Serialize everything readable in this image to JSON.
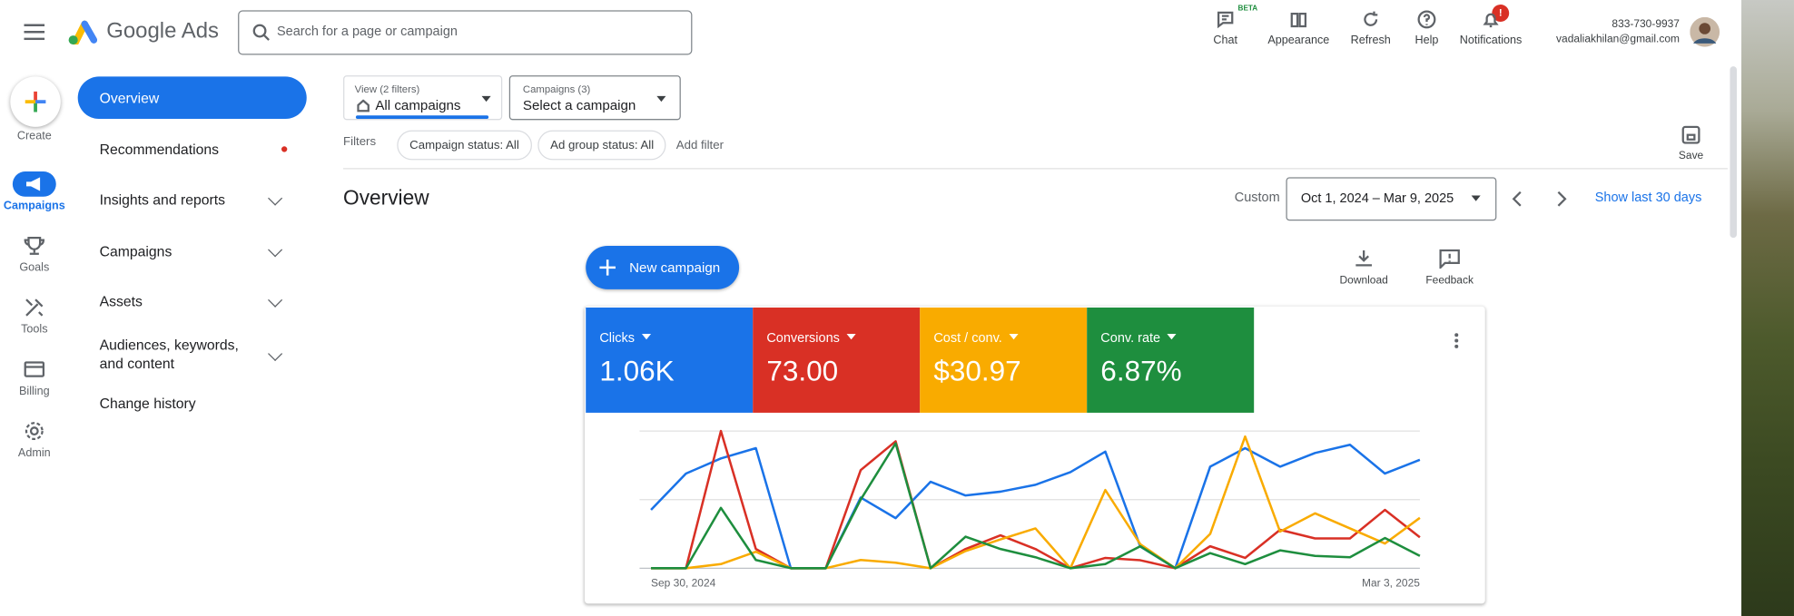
{
  "header": {
    "brand": "Google Ads",
    "search_placeholder": "Search for a page or campaign",
    "actions": [
      "Chat",
      "Appearance",
      "Refresh",
      "Help",
      "Notifications"
    ],
    "beta": "BETA",
    "badge": "!",
    "phone": "833-730-9937",
    "email": "vadaliakhilan@gmail.com"
  },
  "rail": [
    "Create",
    "Campaigns",
    "Goals",
    "Tools",
    "Billing",
    "Admin"
  ],
  "nav": [
    "Overview",
    "Recommendations",
    "Insights and reports",
    "Campaigns",
    "Assets",
    "Audiences, keywords, and content",
    "Change history"
  ],
  "toolbar": {
    "view_label": "View (2 filters)",
    "view_value": "All campaigns",
    "campaigns_label": "Campaigns (3)",
    "campaigns_value": "Select a campaign",
    "filters_label": "Filters",
    "filters": [
      "Campaign status: All",
      "Ad group status: All"
    ],
    "add_filter": "Add filter",
    "save": "Save"
  },
  "page": {
    "title": "Overview",
    "custom": "Custom",
    "date_range": "Oct 1, 2024 – Mar 9, 2025",
    "show_last": "Show last 30 days",
    "new_campaign": "New campaign",
    "download": "Download",
    "feedback": "Feedback"
  },
  "chart_data": {
    "type": "line",
    "categories": [
      "Sep 30, 2024",
      null,
      null,
      null,
      null,
      null,
      null,
      null,
      null,
      null,
      null,
      null,
      null,
      null,
      null,
      null,
      null,
      null,
      null,
      null,
      null,
      null,
      "Mar 3, 2025"
    ],
    "ylim": [
      0,
      100
    ],
    "grid": true,
    "series": [
      {
        "name": "Clicks",
        "total": "1.06K",
        "color": "#1a73e8",
        "values": [
          42.5,
          69,
          80,
          87.5,
          0,
          0,
          51.5,
          36.5,
          63,
          53,
          55.8,
          60.8,
          70,
          85,
          15.8,
          0,
          74,
          87.5,
          74,
          84,
          90,
          69,
          79
        ]
      },
      {
        "name": "Conversions",
        "total": "73.00",
        "color": "#d93025",
        "values": [
          0,
          0,
          100,
          14,
          0,
          0,
          71.5,
          92.5,
          0,
          14,
          24,
          14,
          0,
          7.5,
          5.8,
          0,
          16,
          7.5,
          28,
          21.7,
          21.7,
          42.5,
          22.5
        ]
      },
      {
        "name": "Cost / conv.",
        "total": "$30.97",
        "color": "#f9ab00",
        "values": [
          0,
          0,
          3,
          12,
          0,
          0,
          6,
          4,
          0,
          12.5,
          21,
          29,
          0,
          57,
          17.5,
          0,
          25,
          96,
          26.7,
          40,
          29,
          18,
          36.7
        ]
      },
      {
        "name": "Conv. rate",
        "total": "6.87%",
        "color": "#1e8e3e",
        "values": [
          0,
          0,
          44,
          6,
          0,
          0,
          50,
          91,
          0,
          23,
          14,
          8,
          0,
          3,
          16,
          0,
          11,
          3,
          13,
          9,
          8,
          22,
          9
        ]
      }
    ]
  }
}
